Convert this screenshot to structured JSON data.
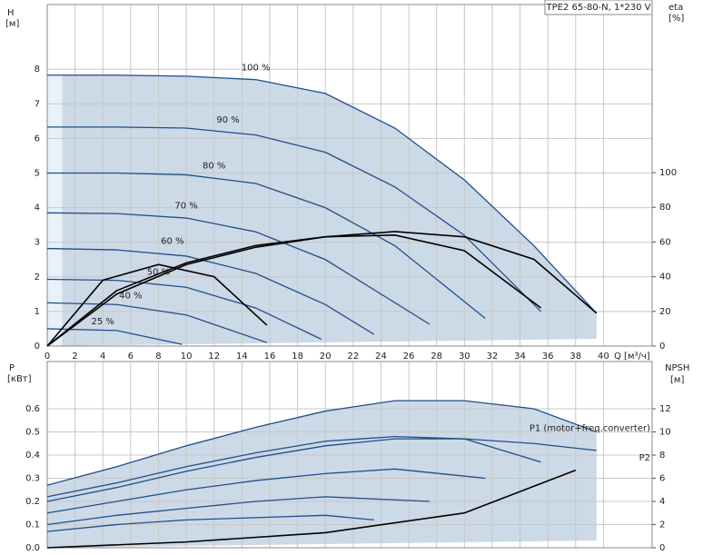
{
  "chart_data": [
    {
      "type": "line",
      "title": "TPE2 65-80-N, 1*230 V",
      "ylabel": "H",
      "yunit": "[м]",
      "y2label": "eta",
      "y2unit": "[%]",
      "xlabel": "Q [м³/ч]",
      "xlim": [
        0,
        43.5
      ],
      "ylim": [
        0,
        9.87
      ],
      "y2lim": [
        0,
        196.9
      ],
      "grid": true,
      "xticks": [
        0,
        2,
        4,
        6,
        8,
        10,
        12,
        14,
        16,
        18,
        20,
        22,
        24,
        26,
        28,
        30,
        32,
        34,
        36,
        38,
        40
      ],
      "yticks": [
        0,
        1,
        2,
        3,
        4,
        5,
        6,
        7,
        8
      ],
      "y2ticks": [
        0,
        20,
        40,
        60,
        80,
        100
      ],
      "series": [
        {
          "name": "100 %",
          "color": "#1f4e8c",
          "x": [
            0,
            5,
            10,
            15,
            20,
            25,
            30,
            35,
            39.5
          ],
          "values": [
            7.83,
            7.83,
            7.8,
            7.7,
            7.3,
            6.3,
            4.8,
            2.9,
            0.95
          ]
        },
        {
          "name": "90 %",
          "color": "#1f4e8c",
          "x": [
            0,
            5,
            10,
            15,
            20,
            25,
            30,
            35.5
          ],
          "values": [
            6.33,
            6.33,
            6.3,
            6.1,
            5.6,
            4.6,
            3.2,
            1.0
          ]
        },
        {
          "name": "80 %",
          "color": "#1f4e8c",
          "x": [
            0,
            5,
            10,
            15,
            20,
            25,
            31.5
          ],
          "values": [
            5.0,
            5.0,
            4.95,
            4.7,
            4.0,
            2.9,
            0.8
          ]
        },
        {
          "name": "70 %",
          "color": "#1f4e8c",
          "x": [
            0,
            5,
            10,
            15,
            20,
            27.5
          ],
          "values": [
            3.85,
            3.83,
            3.7,
            3.3,
            2.5,
            0.63
          ]
        },
        {
          "name": "60 %",
          "color": "#1f4e8c",
          "x": [
            0,
            5,
            10,
            15,
            20,
            23.5
          ],
          "values": [
            2.82,
            2.78,
            2.6,
            2.1,
            1.2,
            0.34
          ]
        },
        {
          "name": "50 %",
          "color": "#1f4e8c",
          "x": [
            0,
            5,
            10,
            15,
            19.7
          ],
          "values": [
            1.93,
            1.9,
            1.7,
            1.1,
            0.2
          ]
        },
        {
          "name": "40 %",
          "color": "#1f4e8c",
          "x": [
            0,
            5,
            10,
            15.8
          ],
          "values": [
            1.25,
            1.2,
            0.9,
            0.1
          ]
        },
        {
          "name": "25 %",
          "color": "#1f4e8c",
          "x": [
            0,
            5,
            9.7
          ],
          "values": [
            0.5,
            0.45,
            0.05
          ]
        },
        {
          "color": "#000000",
          "axis": "y2",
          "x": [
            0,
            5,
            10,
            15,
            20,
            25,
            30,
            35,
            39.5
          ],
          "values": [
            0,
            30,
            47,
            57,
            63,
            66,
            63,
            50,
            19
          ]
        },
        {
          "color": "#000000",
          "axis": "y2",
          "x": [
            0,
            5,
            10,
            15,
            20,
            25,
            30,
            35.5
          ],
          "values": [
            0,
            32,
            48,
            58,
            63,
            64,
            55,
            22
          ]
        },
        {
          "color": "#000000",
          "axis": "y2",
          "x": [
            0,
            4,
            8,
            12,
            15.8
          ],
          "values": [
            0,
            38,
            47,
            40,
            12
          ]
        }
      ]
    },
    {
      "type": "line",
      "ylabel": "P",
      "yunit": "[кВт]",
      "y2label": "NPSH",
      "y2unit": "[м]",
      "xlim": [
        0,
        43.5
      ],
      "ylim": [
        0,
        0.804
      ],
      "y2lim": [
        0,
        16.08
      ],
      "grid": true,
      "xticks": [
        0,
        2,
        4,
        6,
        8,
        10,
        12,
        14,
        16,
        18,
        20,
        22,
        24,
        26,
        28,
        30,
        32,
        34,
        36,
        38,
        40
      ],
      "yticks": [
        {
          "value": 0,
          "label": "0.0"
        },
        0.1,
        0.2,
        0.3,
        0.4,
        0.5,
        0.6
      ],
      "y2ticks": [
        0,
        2,
        4,
        6,
        8,
        10,
        12
      ],
      "series": [
        {
          "name": "P1 (motor+freq.converter)",
          "color": "#1f4e8c",
          "x": [
            0,
            5,
            10,
            15,
            20,
            25,
            30,
            35,
            39.5
          ],
          "values": [
            0.27,
            0.35,
            0.44,
            0.52,
            0.59,
            0.635,
            0.635,
            0.6,
            0.5
          ]
        },
        {
          "name": "P2",
          "color": "#1f4e8c",
          "x": [
            0,
            5,
            10,
            15,
            20,
            25,
            30,
            35,
            39.5
          ],
          "values": [
            0.22,
            0.28,
            0.35,
            0.41,
            0.46,
            0.48,
            0.47,
            0.45,
            0.42
          ]
        },
        {
          "color": "#1f4e8c",
          "x": [
            0,
            5,
            10,
            15,
            20,
            25,
            30,
            35.5
          ],
          "values": [
            0.2,
            0.26,
            0.33,
            0.39,
            0.44,
            0.47,
            0.47,
            0.37
          ]
        },
        {
          "color": "#1f4e8c",
          "x": [
            0,
            5,
            10,
            15,
            20,
            25,
            31.5
          ],
          "values": [
            0.15,
            0.2,
            0.25,
            0.29,
            0.32,
            0.34,
            0.3
          ]
        },
        {
          "color": "#1f4e8c",
          "x": [
            0,
            5,
            10,
            15,
            20,
            27.5
          ],
          "values": [
            0.1,
            0.14,
            0.17,
            0.2,
            0.22,
            0.2
          ]
        },
        {
          "color": "#1f4e8c",
          "x": [
            0,
            5,
            10,
            15,
            20,
            23.5
          ],
          "values": [
            0.07,
            0.1,
            0.12,
            0.13,
            0.14,
            0.12
          ]
        },
        {
          "color": "#000000",
          "axis": "y2",
          "x": [
            0,
            10,
            20,
            30,
            38
          ],
          "values": [
            0,
            0.5,
            1.3,
            3.0,
            6.7
          ]
        }
      ]
    }
  ]
}
